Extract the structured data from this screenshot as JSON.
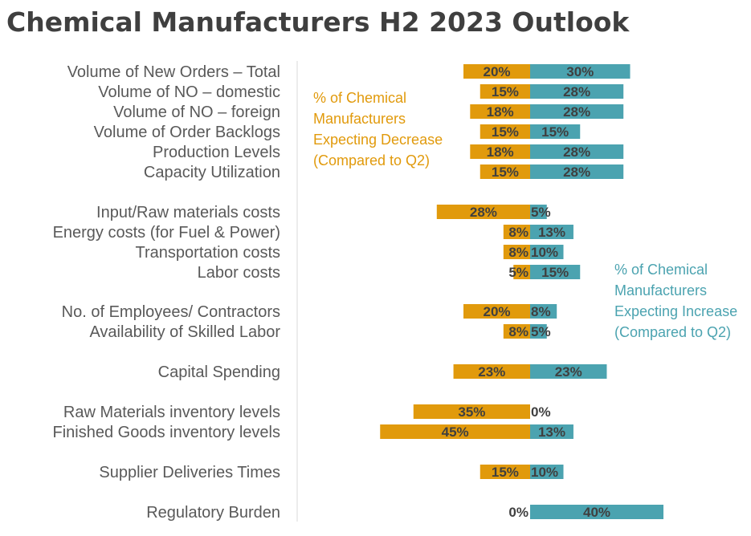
{
  "chart_data": {
    "type": "bar",
    "title": "Chemical Manufacturers H2 2023 Outlook",
    "categories": [
      "Volume of New Orders – Total",
      "Volume of NO – domestic",
      "Volume of NO – foreign",
      "Volume of Order Backlogs",
      "Production Levels",
      "Capacity Utilization",
      "Input/Raw materials costs",
      "Energy costs (for Fuel & Power)",
      "Transportation costs",
      "Labor costs",
      "No. of Employees/ Contractors",
      "Availability of Skilled Labor",
      "Capital Spending",
      "Raw Materials inventory levels",
      "Finished Goods inventory levels",
      "Supplier Deliveries Times",
      "Regulatory Burden"
    ],
    "series": [
      {
        "name": "% of Chemical Manufacturers Expecting Decrease (Compared to Q2)",
        "color": "#E19A0C",
        "values": [
          20,
          15,
          18,
          15,
          18,
          15,
          28,
          8,
          8,
          5,
          20,
          8,
          23,
          35,
          45,
          15,
          0
        ],
        "labels": [
          "20%",
          "15%",
          "18%",
          "15%",
          "18%",
          "15%",
          "28%",
          "8%",
          "8%",
          "5%",
          "20%",
          "8%",
          "23%",
          "35%",
          "45%",
          "15%",
          "0%"
        ]
      },
      {
        "name": "% of Chemical Manufacturers Expecting Increase (Compared to Q2)",
        "color": "#4BA3B0",
        "values": [
          30,
          28,
          28,
          15,
          28,
          28,
          5,
          13,
          10,
          15,
          8,
          5,
          23,
          0,
          13,
          10,
          40
        ],
        "labels": [
          "30%",
          "28%",
          "28%",
          "15%",
          "28%",
          "28%",
          "5%",
          "13%",
          "10%",
          "15%",
          "8%",
          "5%",
          "23%",
          "0%",
          "13%",
          "10%",
          "40%"
        ]
      }
    ],
    "annotations": {
      "decrease": [
        "% of Chemical",
        "Manufacturers",
        "Expecting Decrease",
        "(Compared to Q2)"
      ],
      "increase": [
        "% of Chemical",
        "Manufacturers",
        "Expecting Increase",
        "(Compared to Q2)"
      ]
    },
    "orientation": "horizontal-diverging",
    "grid": false,
    "legend": "none"
  }
}
